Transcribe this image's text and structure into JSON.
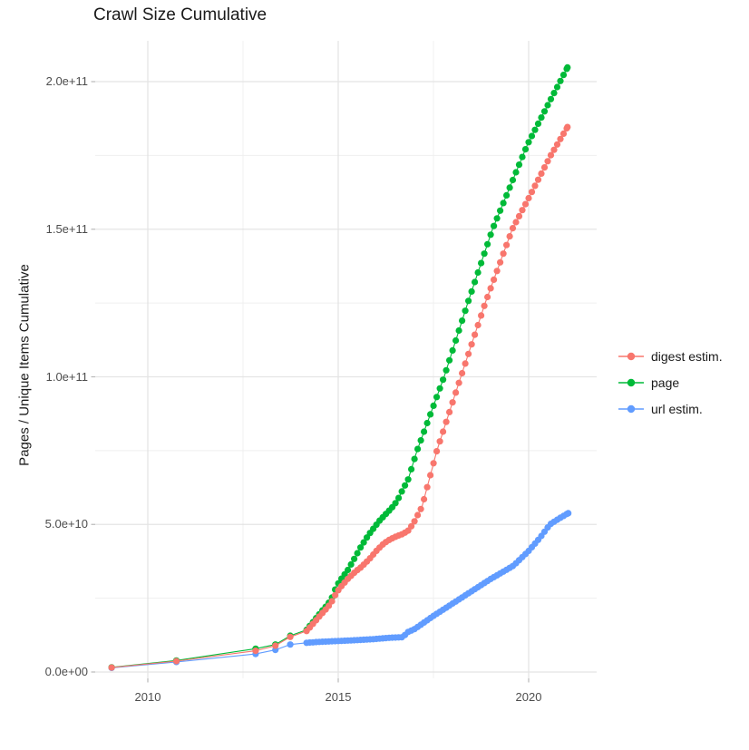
{
  "title": "Crawl Size Cumulative",
  "y_axis": {
    "label": "Pages / Unique Items Cumulative",
    "ticks": [
      {
        "value_e9": 0,
        "label": "0.0e+00"
      },
      {
        "value_e9": 50,
        "label": "5.0e+10"
      },
      {
        "value_e9": 100,
        "label": "1.0e+11"
      },
      {
        "value_e9": 150,
        "label": "1.5e+11"
      },
      {
        "value_e9": 200,
        "label": "2.0e+11"
      }
    ],
    "minor_ticks_e9": [
      25,
      75,
      125,
      175
    ]
  },
  "x_axis": {
    "label": "",
    "ticks": [
      {
        "value": 2010,
        "label": "2010"
      },
      {
        "value": 2015,
        "label": "2015"
      },
      {
        "value": 2020,
        "label": "2020"
      }
    ],
    "minor_ticks": [
      2012.5,
      2017.5
    ]
  },
  "legend": {
    "position": "right",
    "items": [
      {
        "label": "digest estim.",
        "color": "#F8766D"
      },
      {
        "label": "page",
        "color": "#00BA38"
      },
      {
        "label": "url estim.",
        "color": "#619CFF"
      }
    ]
  },
  "chart_data": {
    "type": "line",
    "title": "Crawl Size Cumulative",
    "xlabel": "",
    "ylabel": "Pages / Unique Items Cumulative",
    "x_unit": "year",
    "y_unit": "pages, value_e9 = billions (1e9)",
    "xlim": [
      2008.62,
      2021.79
    ],
    "ylim_e9": [
      -2.2,
      213.8
    ],
    "grid": true,
    "legend_position": "right",
    "marker": "point-with-line",
    "dense_dots_from_year": 2014.1,
    "dot_interval_years": 0.0833,
    "z_order": [
      "url estim.",
      "page",
      "digest estim."
    ],
    "series": [
      {
        "name": "digest estim.",
        "color": "#F8766D",
        "points_year_value_e9": [
          [
            2009.05,
            1.5
          ],
          [
            2010.75,
            3.7
          ],
          [
            2012.83,
            7.2
          ],
          [
            2013.35,
            8.9
          ],
          [
            2013.74,
            11.9
          ],
          [
            2014.17,
            13.9
          ],
          [
            2014.33,
            16.2
          ],
          [
            2014.53,
            19.2
          ],
          [
            2014.73,
            22.0
          ],
          [
            2014.85,
            24.2
          ],
          [
            2014.95,
            26.8
          ],
          [
            2015.08,
            29.0
          ],
          [
            2015.25,
            31.5
          ],
          [
            2015.45,
            34.0
          ],
          [
            2015.6,
            35.5
          ],
          [
            2015.8,
            38.0
          ],
          [
            2016.0,
            41.0
          ],
          [
            2016.15,
            43.0
          ],
          [
            2016.3,
            44.5
          ],
          [
            2016.5,
            45.8
          ],
          [
            2016.7,
            46.8
          ],
          [
            2016.85,
            48.0
          ],
          [
            2017.0,
            51.0
          ],
          [
            2017.2,
            56.0
          ],
          [
            2017.59,
            75.0
          ],
          [
            2018.22,
            100.0
          ],
          [
            2018.86,
            125.0
          ],
          [
            2019.57,
            150.0
          ],
          [
            2020.0,
            160.5
          ],
          [
            2020.58,
            175.0
          ],
          [
            2021.02,
            184.6
          ]
        ]
      },
      {
        "name": "page",
        "color": "#00BA38",
        "points_year_value_e9": [
          [
            2009.05,
            1.6
          ],
          [
            2010.75,
            3.9
          ],
          [
            2012.83,
            7.9
          ],
          [
            2013.35,
            9.3
          ],
          [
            2013.74,
            12.3
          ],
          [
            2014.17,
            14.3
          ],
          [
            2014.33,
            16.8
          ],
          [
            2014.53,
            20.0
          ],
          [
            2014.73,
            23.0
          ],
          [
            2014.85,
            25.5
          ],
          [
            2014.95,
            29.0
          ],
          [
            2015.08,
            31.5
          ],
          [
            2015.25,
            34.5
          ],
          [
            2015.45,
            39.0
          ],
          [
            2015.6,
            42.5
          ],
          [
            2015.8,
            46.5
          ],
          [
            2015.96,
            49.2
          ],
          [
            2016.1,
            51.5
          ],
          [
            2016.25,
            53.5
          ],
          [
            2016.4,
            55.5
          ],
          [
            2016.55,
            58.0
          ],
          [
            2016.7,
            62.0
          ],
          [
            2016.83,
            65.0
          ],
          [
            2017.07,
            75.0
          ],
          [
            2017.78,
            100.0
          ],
          [
            2018.4,
            125.0
          ],
          [
            2019.05,
            150.0
          ],
          [
            2019.97,
            178.7
          ],
          [
            2020.5,
            192.0
          ],
          [
            2021.02,
            204.8
          ]
        ]
      },
      {
        "name": "url estim.",
        "color": "#619CFF",
        "points_year_value_e9": [
          [
            2009.05,
            1.4
          ],
          [
            2010.75,
            3.4
          ],
          [
            2012.83,
            6.1
          ],
          [
            2013.35,
            7.5
          ],
          [
            2013.74,
            9.3
          ],
          [
            2014.17,
            9.9
          ],
          [
            2014.5,
            10.2
          ],
          [
            2015.0,
            10.5
          ],
          [
            2015.5,
            10.8
          ],
          [
            2016.0,
            11.2
          ],
          [
            2016.36,
            11.6
          ],
          [
            2016.7,
            11.8
          ],
          [
            2016.82,
            13.5
          ],
          [
            2017.0,
            14.5
          ],
          [
            2017.5,
            19.0
          ],
          [
            2018.22,
            25.0
          ],
          [
            2019.0,
            31.5
          ],
          [
            2019.6,
            36.0
          ],
          [
            2020.0,
            41.0
          ],
          [
            2020.3,
            45.5
          ],
          [
            2020.56,
            50.0
          ],
          [
            2020.8,
            52.0
          ],
          [
            2021.04,
            53.8
          ]
        ]
      }
    ]
  }
}
